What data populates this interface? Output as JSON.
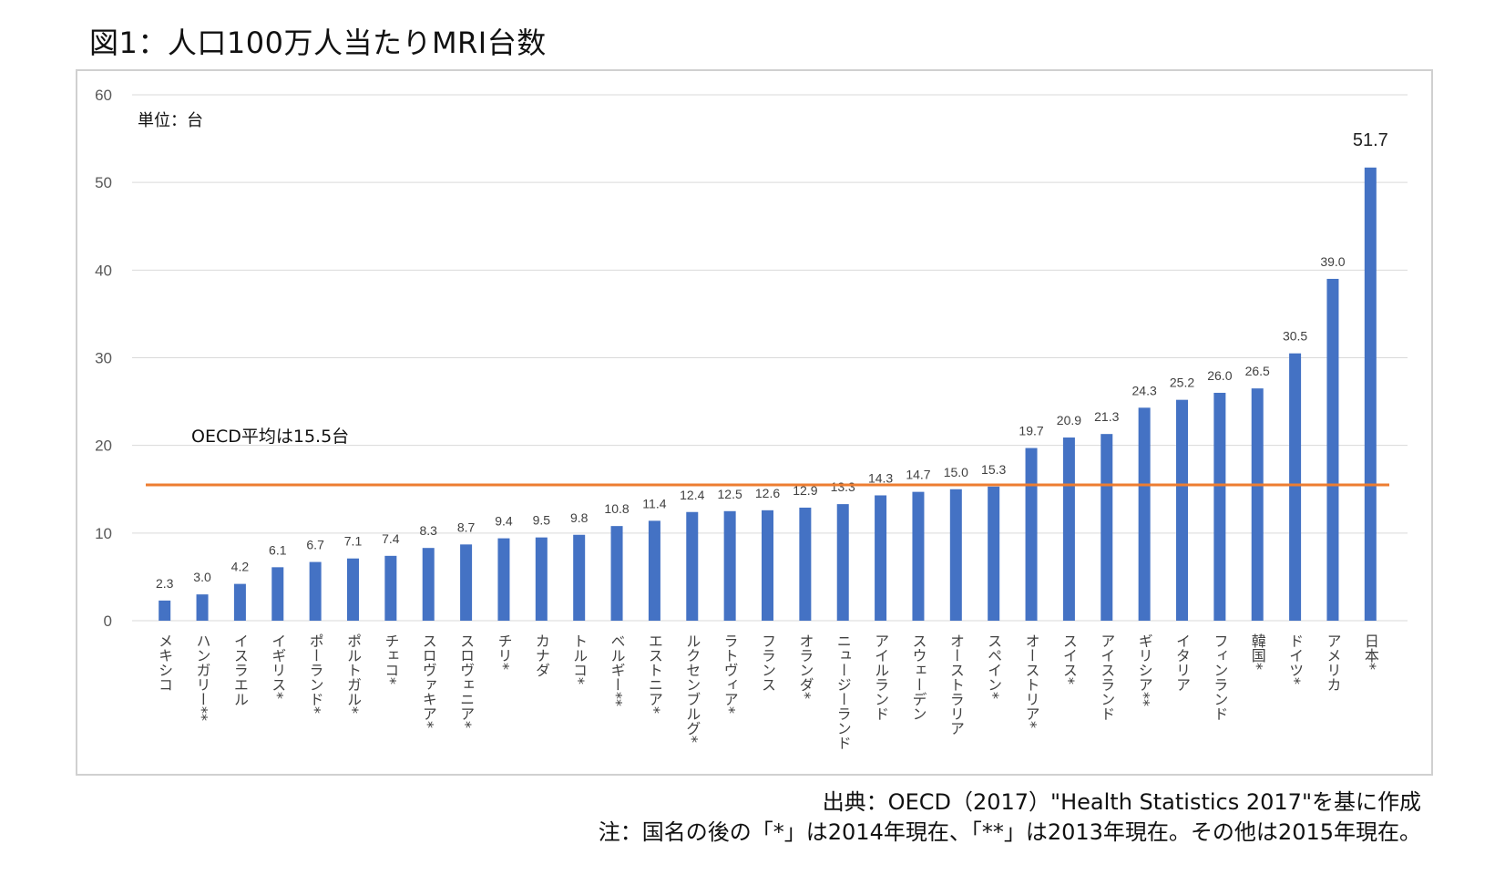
{
  "title": "図1：人口100万人当たりMRI台数",
  "source": "出典：OECD（2017）\"Health Statistics 2017\"を基に作成",
  "note": "注：国名の後の「*」は2014年現在、「**」は2013年現在。その他は2015年現在。",
  "chart_data": {
    "type": "bar",
    "unit_label": "単位：台",
    "ylim": [
      0,
      60
    ],
    "yticks": [
      "0",
      "10",
      "20",
      "30",
      "40",
      "50",
      "60"
    ],
    "grid": true,
    "bar_color": "#4472c4",
    "categories": [
      "メキシコ",
      "ハンガリー**",
      "イスラエル",
      "イギリス*",
      "ポーランド*",
      "ポルトガル*",
      "チェコ*",
      "スロヴァキア*",
      "スロヴェニア*",
      "チリ*",
      "カナダ",
      "トルコ*",
      "ベルギー**",
      "エストニア*",
      "ルクセンブルグ*",
      "ラトヴィア*",
      "フランス",
      "オランダ*",
      "ニュージーランド",
      "アイルランド",
      "スウェーデン",
      "オーストラリア",
      "スペイン*",
      "オーストリア*",
      "スイス*",
      "アイスランド",
      "ギリシア**",
      "イタリア",
      "フィンランド",
      "韓国*",
      "ドイツ*",
      "アメリカ",
      "日本*"
    ],
    "values": [
      2.3,
      3.0,
      4.2,
      6.1,
      6.7,
      7.1,
      7.4,
      8.3,
      8.7,
      9.4,
      9.5,
      9.8,
      10.8,
      11.4,
      12.4,
      12.5,
      12.6,
      12.9,
      13.3,
      14.3,
      14.7,
      15.0,
      15.3,
      19.7,
      20.9,
      21.3,
      24.3,
      25.2,
      26.0,
      26.5,
      30.5,
      39.0,
      51.7
    ],
    "labels": [
      "2.3",
      "3.0",
      "4.2",
      "6.1",
      "6.7",
      "7.1",
      "7.4",
      "8.3",
      "8.7",
      "9.4",
      "9.5",
      "9.8",
      "10.8",
      "11.4",
      "12.4",
      "12.5",
      "12.6",
      "12.9",
      "13.3",
      "14.3",
      "14.7",
      "15.0",
      "15.3",
      "19.7",
      "20.9",
      "21.3",
      "24.3",
      "25.2",
      "26.0",
      "26.5",
      "30.5",
      "39.0",
      "51.7"
    ],
    "reference_line": {
      "value": 15.5,
      "label": "OECD平均は15.5台",
      "color": "#ed7d31"
    }
  }
}
